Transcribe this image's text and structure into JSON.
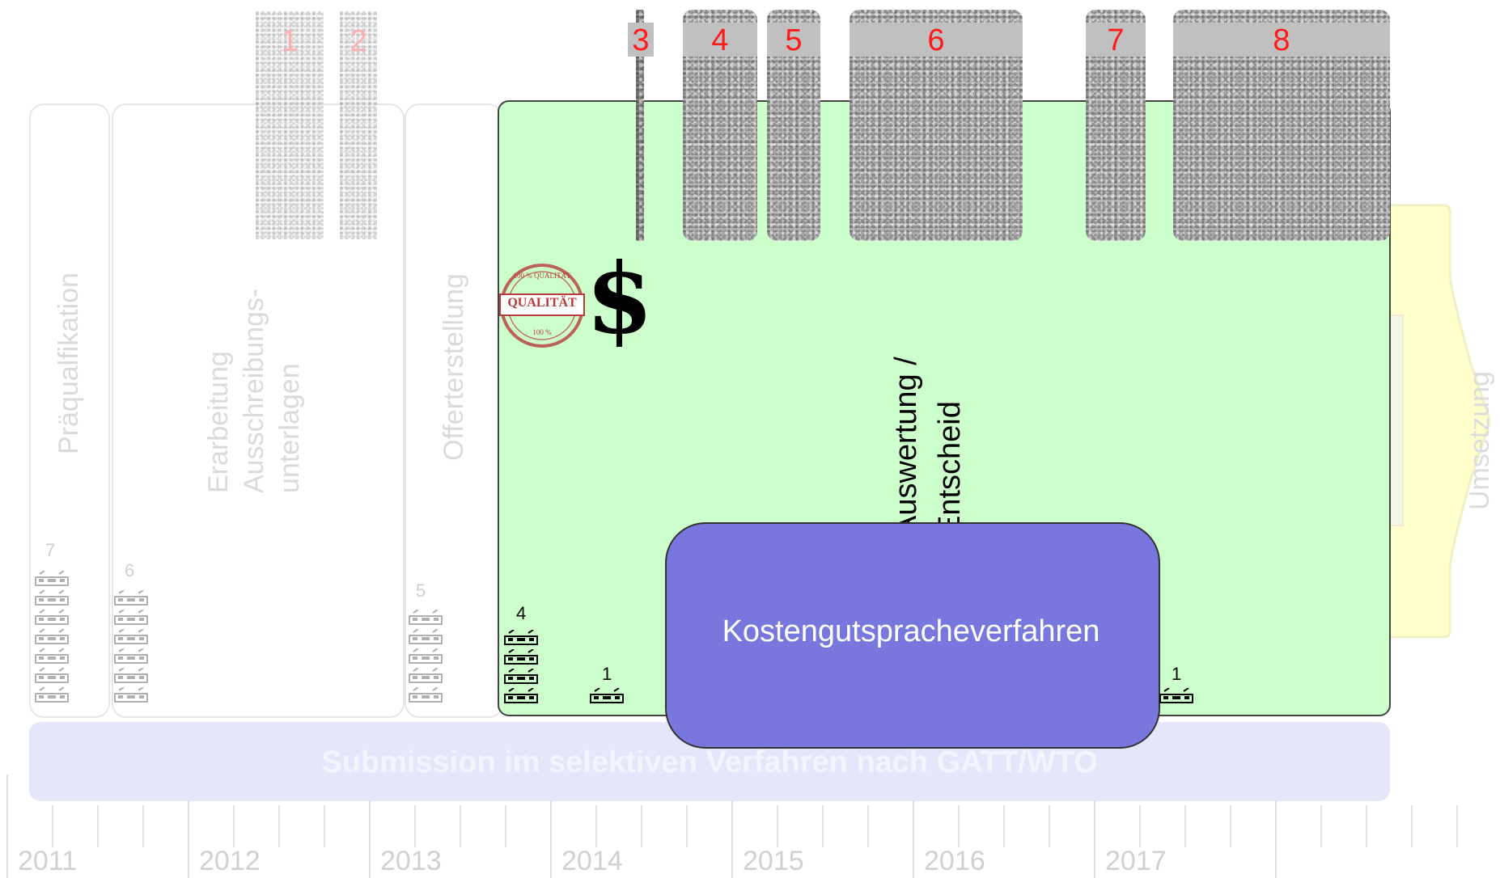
{
  "phases": {
    "praequalifikation": "Präqualfikation",
    "erarbeitung_line1": "Erarbeitung",
    "erarbeitung_line2": "Ausschreibungs-",
    "erarbeitung_line3": "unterlagen",
    "offerterstellung": "Offerterstellung",
    "auswertung_line1": "Auswertung /",
    "auswertung_line2": "Entscheid",
    "umsetzung": "Umsetzung"
  },
  "bidder_counts": {
    "praequalifikation": "7",
    "erarbeitung": "6",
    "offerterstellung": "5",
    "auswertung_start": "4",
    "auswertung_mid": "1",
    "auswertung_end": "1"
  },
  "process_box": {
    "label": "Kostengutspracheverfahren",
    "color": "#7777dd"
  },
  "submission_bar": {
    "label": "Submission im selektiven Verfahren nach GATT/WTO"
  },
  "steps": [
    "1",
    "2",
    "3",
    "4",
    "5",
    "6",
    "7",
    "8"
  ],
  "quality_stamp": {
    "main": "QUALITÄT",
    "top": "100 % QUALITÄT",
    "bottom": "100 %"
  },
  "cost_symbol": "$",
  "timeline": {
    "years": [
      "2011",
      "2012",
      "2013",
      "2014",
      "2015",
      "2016",
      "2017"
    ]
  },
  "colors": {
    "evaluation_area": "#ccffcc",
    "step_numbers": "#ff1a1a",
    "umsetzung_arrow": "#ffffcc"
  }
}
